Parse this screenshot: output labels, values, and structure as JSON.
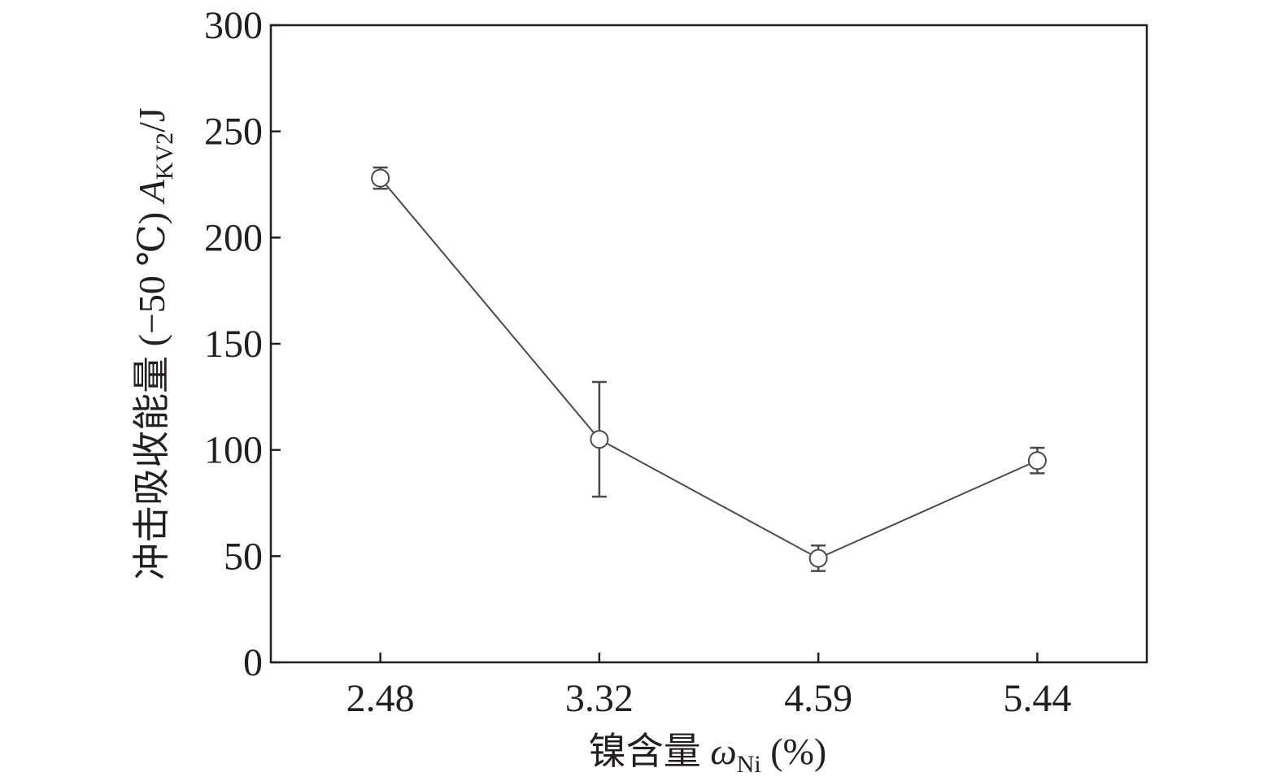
{
  "chart_data": {
    "type": "line",
    "categories": [
      "2.48",
      "3.32",
      "4.59",
      "5.44"
    ],
    "series": [
      {
        "color": "#4a4a4a",
        "values": [
          228,
          105,
          49,
          95
        ],
        "errors": [
          5,
          27,
          6,
          6
        ]
      }
    ],
    "ylim": [
      0,
      300
    ],
    "yticks": [
      0,
      50,
      100,
      150,
      200,
      250,
      300
    ],
    "x_label": [
      "镍含量 ",
      "ω",
      "Ni",
      " (%)"
    ],
    "y_label": [
      "冲击吸收能量 (−50 ℃) ",
      "A",
      "KV2",
      "/J"
    ]
  }
}
